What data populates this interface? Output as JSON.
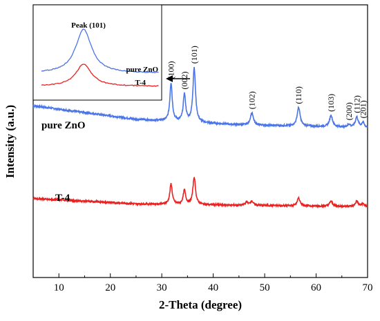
{
  "chart_data": {
    "type": "line",
    "xlabel": "2-Theta (degree)",
    "ylabel": "Intensity (a.u.)",
    "xlim": [
      5,
      70
    ],
    "xticks": [
      10,
      20,
      30,
      40,
      50,
      60,
      70
    ],
    "yticks_visible": false,
    "grid": false,
    "series": [
      {
        "name": "pure ZnO",
        "color": "#4a74e8",
        "baseline": [
          [
            5,
            0.63
          ],
          [
            25,
            0.58
          ],
          [
            45,
            0.56
          ],
          [
            70,
            0.55
          ]
        ],
        "peaks": [
          {
            "x": 31.8,
            "height": 0.14,
            "width": 0.28
          },
          {
            "x": 34.4,
            "height": 0.1,
            "width": 0.28
          },
          {
            "x": 36.3,
            "height": 0.2,
            "width": 0.3
          },
          {
            "x": 47.5,
            "height": 0.045,
            "width": 0.35
          },
          {
            "x": 56.6,
            "height": 0.068,
            "width": 0.35
          },
          {
            "x": 62.9,
            "height": 0.042,
            "width": 0.35
          },
          {
            "x": 66.4,
            "height": 0.01,
            "width": 0.3
          },
          {
            "x": 67.9,
            "height": 0.038,
            "width": 0.32
          },
          {
            "x": 69.1,
            "height": 0.018,
            "width": 0.3
          }
        ]
      },
      {
        "name": "T-4",
        "color": "#e82020",
        "baseline": [
          [
            5,
            0.29
          ],
          [
            25,
            0.27
          ],
          [
            45,
            0.265
          ],
          [
            70,
            0.26
          ]
        ],
        "peaks": [
          {
            "x": 31.8,
            "height": 0.075,
            "width": 0.28
          },
          {
            "x": 34.4,
            "height": 0.052,
            "width": 0.28
          },
          {
            "x": 36.3,
            "height": 0.1,
            "width": 0.3
          },
          {
            "x": 46.5,
            "height": 0.012,
            "width": 0.3
          },
          {
            "x": 47.5,
            "height": 0.015,
            "width": 0.35
          },
          {
            "x": 56.6,
            "height": 0.028,
            "width": 0.35
          },
          {
            "x": 62.9,
            "height": 0.018,
            "width": 0.35
          },
          {
            "x": 67.9,
            "height": 0.02,
            "width": 0.32
          },
          {
            "x": 69.1,
            "height": 0.01,
            "width": 0.3
          }
        ]
      }
    ],
    "peak_annotations": [
      {
        "label": "(100)",
        "x": 31.8
      },
      {
        "label": "(002)",
        "x": 34.4
      },
      {
        "label": "(101)",
        "x": 36.3
      },
      {
        "label": "(102)",
        "x": 47.5
      },
      {
        "label": "(110)",
        "x": 56.6
      },
      {
        "label": "(103)",
        "x": 62.9
      },
      {
        "label": "(200)",
        "x": 66.4
      },
      {
        "label": "(112)",
        "x": 67.9
      },
      {
        "label": "(201)",
        "x": 69.1
      }
    ],
    "inset": {
      "title": "Peak (101)",
      "series_labels": [
        "pure ZnO",
        "T-4"
      ]
    }
  }
}
